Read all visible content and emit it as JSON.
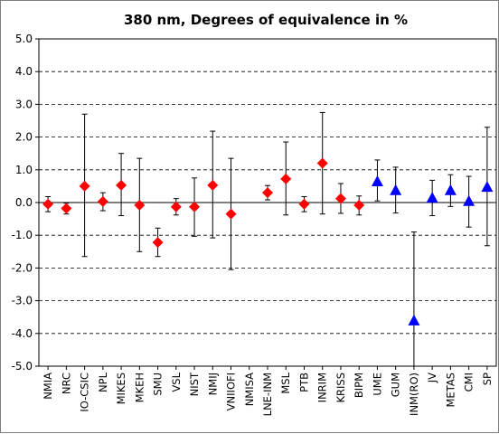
{
  "chart_data": {
    "type": "scatter",
    "title": "380 nm, Degrees of equivalence in %",
    "xlabel": "",
    "ylabel": "",
    "ylim": [
      -5.0,
      5.0
    ],
    "ytick_step": 1.0,
    "ytick_labels": [
      "5.0",
      "4.0",
      "3.0",
      "2.0",
      "1.0",
      "0.0",
      "-1.0",
      "-2.0",
      "-3.0",
      "-4.0",
      "-5.0"
    ],
    "grid": "horizontal dashed",
    "legend": "none",
    "colors": {
      "diamond": "#ff0000",
      "triangle": "#0000ff",
      "errorbar": "#000000"
    },
    "categories": [
      "NMIA",
      "NRC",
      "IO-CSIC",
      "NPL",
      "MIKES",
      "MKEH",
      "SMU",
      "VSL",
      "NIST",
      "NMIJ",
      "VNIIOFI",
      "NMISA",
      "LNE-INM",
      "MSL",
      "PTB",
      "INRIM",
      "KRISS",
      "BIPM",
      "UME",
      "GUM",
      "INM(RO)",
      "JV",
      "METAS",
      "CMI",
      "SP"
    ],
    "points": [
      {
        "lab": "NMIA",
        "value": -0.05,
        "lower": -0.28,
        "upper": 0.18,
        "marker": "diamond"
      },
      {
        "lab": "NRC",
        "value": -0.18,
        "lower": -0.35,
        "upper": -0.02,
        "marker": "diamond"
      },
      {
        "lab": "IO-CSIC",
        "value": 0.5,
        "lower": -1.65,
        "upper": 2.7,
        "marker": "diamond"
      },
      {
        "lab": "NPL",
        "value": 0.03,
        "lower": -0.25,
        "upper": 0.3,
        "marker": "diamond"
      },
      {
        "lab": "MIKES",
        "value": 0.53,
        "lower": -0.4,
        "upper": 1.5,
        "marker": "diamond"
      },
      {
        "lab": "MKEH",
        "value": -0.08,
        "lower": -1.5,
        "upper": 1.35,
        "marker": "diamond"
      },
      {
        "lab": "SMU",
        "value": -1.22,
        "lower": -1.65,
        "upper": -0.78,
        "marker": "diamond"
      },
      {
        "lab": "VSL",
        "value": -0.13,
        "lower": -0.38,
        "upper": 0.12,
        "marker": "diamond"
      },
      {
        "lab": "NIST",
        "value": -0.13,
        "lower": -1.03,
        "upper": 0.75,
        "marker": "diamond"
      },
      {
        "lab": "NMIJ",
        "value": 0.53,
        "lower": -1.08,
        "upper": 2.18,
        "marker": "diamond"
      },
      {
        "lab": "VNIIOFI",
        "value": -0.35,
        "lower": -2.05,
        "upper": 1.35,
        "marker": "diamond"
      },
      {
        "lab": "NMISA",
        "value": null,
        "lower": null,
        "upper": null,
        "marker": "none"
      },
      {
        "lab": "LNE-INM",
        "value": 0.3,
        "lower": 0.08,
        "upper": 0.52,
        "marker": "diamond"
      },
      {
        "lab": "MSL",
        "value": 0.72,
        "lower": -0.38,
        "upper": 1.85,
        "marker": "diamond"
      },
      {
        "lab": "PTB",
        "value": -0.05,
        "lower": -0.28,
        "upper": 0.18,
        "marker": "diamond"
      },
      {
        "lab": "INRIM",
        "value": 1.2,
        "lower": -0.35,
        "upper": 2.75,
        "marker": "diamond"
      },
      {
        "lab": "KRISS",
        "value": 0.12,
        "lower": -0.33,
        "upper": 0.58,
        "marker": "diamond"
      },
      {
        "lab": "BIPM",
        "value": -0.08,
        "lower": -0.38,
        "upper": 0.2,
        "marker": "diamond"
      },
      {
        "lab": "UME",
        "value": 0.65,
        "lower": 0.05,
        "upper": 1.3,
        "marker": "triangle"
      },
      {
        "lab": "GUM",
        "value": 0.38,
        "lower": -0.32,
        "upper": 1.08,
        "marker": "triangle"
      },
      {
        "lab": "INM(RO)",
        "value": -3.6,
        "lower": -5.0,
        "upper": -0.9,
        "marker": "triangle"
      },
      {
        "lab": "JV",
        "value": 0.15,
        "lower": -0.4,
        "upper": 0.68,
        "marker": "triangle"
      },
      {
        "lab": "METAS",
        "value": 0.38,
        "lower": -0.12,
        "upper": 0.85,
        "marker": "triangle"
      },
      {
        "lab": "CMI",
        "value": 0.05,
        "lower": -0.75,
        "upper": 0.8,
        "marker": "triangle"
      },
      {
        "lab": "SP",
        "value": 0.48,
        "lower": -1.32,
        "upper": 2.3,
        "marker": "triangle"
      }
    ]
  }
}
